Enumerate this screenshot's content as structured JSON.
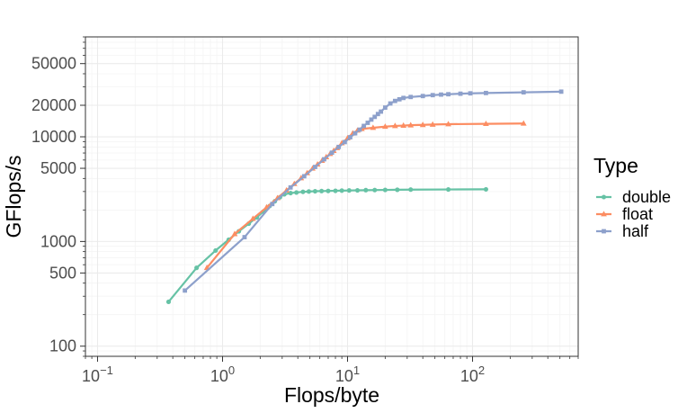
{
  "chart_data": {
    "type": "line",
    "title": "",
    "xlabel": "Flops/byte",
    "ylabel": "GFlops/s",
    "xscale": "log10",
    "yscale": "log10",
    "xlim": [
      0.08,
      700
    ],
    "ylim": [
      80,
      90000
    ],
    "x_ticks": [
      {
        "value": 0.1,
        "base": "10",
        "exp": "−1"
      },
      {
        "value": 1,
        "base": "10",
        "exp": "0"
      },
      {
        "value": 10,
        "base": "10",
        "exp": "1"
      },
      {
        "value": 100,
        "base": "10",
        "exp": "2"
      }
    ],
    "y_ticks": [
      {
        "value": 100,
        "label": "100"
      },
      {
        "value": 500,
        "label": "500"
      },
      {
        "value": 1000,
        "label": "1000"
      },
      {
        "value": 5000,
        "label": "5000"
      },
      {
        "value": 10000,
        "label": "10000"
      },
      {
        "value": 20000,
        "label": "20000"
      },
      {
        "value": 50000,
        "label": "50000"
      }
    ],
    "grid": true,
    "legend": {
      "title": "Type",
      "position": "right"
    },
    "series": [
      {
        "name": "double",
        "color": "#66c2a5",
        "marker": "circle",
        "x": [
          0.37,
          0.62,
          0.88,
          1.12,
          1.35,
          1.62,
          1.88,
          2.12,
          2.38,
          2.62,
          2.88,
          3.12,
          3.5,
          3.9,
          4.4,
          4.9,
          5.5,
          6.2,
          7.0,
          8.0,
          9.0,
          10.3,
          12.0,
          14.0,
          16.5,
          20.0,
          25.0,
          32.0,
          64.0,
          128.0
        ],
        "y": [
          265,
          560,
          820,
          1040,
          1250,
          1480,
          1700,
          1930,
          2180,
          2420,
          2650,
          2820,
          2900,
          2940,
          2980,
          3000,
          3020,
          3030,
          3040,
          3050,
          3060,
          3070,
          3080,
          3090,
          3100,
          3110,
          3120,
          3130,
          3140,
          3150
        ]
      },
      {
        "name": "float",
        "color": "#fc8d62",
        "marker": "triangle",
        "x": [
          0.75,
          1.25,
          1.75,
          2.25,
          2.75,
          3.25,
          3.75,
          4.25,
          4.75,
          5.25,
          5.75,
          6.25,
          6.75,
          7.25,
          7.75,
          8.25,
          9.0,
          10.0,
          11.0,
          12.0,
          13.0,
          16.0,
          20.0,
          24.0,
          28.0,
          32.0,
          40.0,
          48.0,
          64.0,
          128.0,
          256.0
        ],
        "y": [
          560,
          1180,
          1650,
          2120,
          2600,
          3080,
          3550,
          4030,
          4500,
          4980,
          5450,
          5920,
          6400,
          6870,
          7350,
          7820,
          8700,
          9700,
          10800,
          11500,
          11900,
          12200,
          12500,
          12700,
          12800,
          12900,
          13000,
          13100,
          13200,
          13300,
          13400
        ]
      },
      {
        "name": "half",
        "color": "#8da0cb",
        "marker": "square",
        "x": [
          0.5,
          1.5,
          2.5,
          3.5,
          4.5,
          5.5,
          6.5,
          7.5,
          8.5,
          9.5,
          10.5,
          11.5,
          12.5,
          13.5,
          14.5,
          15.5,
          16.5,
          17.5,
          18.5,
          20.0,
          22.0,
          24.0,
          26.0,
          28.0,
          32.0,
          40.0,
          48.0,
          56.0,
          64.0,
          80.0,
          96.0,
          128.0,
          256.0,
          512.0
        ],
        "y": [
          340,
          1100,
          2280,
          3280,
          4200,
          5150,
          6100,
          7050,
          8000,
          8900,
          9900,
          10800,
          11700,
          12700,
          13600,
          14600,
          15500,
          16500,
          17400,
          19000,
          20800,
          22000,
          22800,
          23500,
          24000,
          24500,
          25000,
          25300,
          25500,
          25800,
          26000,
          26200,
          26600,
          27000
        ]
      }
    ]
  }
}
